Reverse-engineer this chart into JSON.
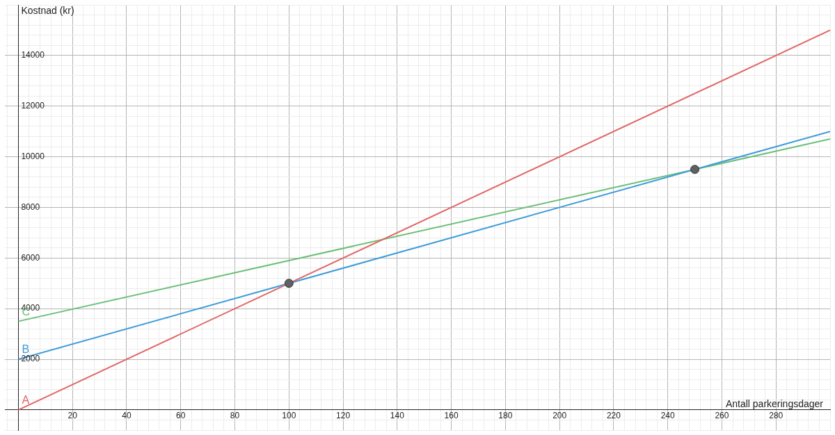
{
  "chart_data": {
    "type": "line",
    "xlabel": "Antall parkeringsdager",
    "ylabel": "Kostnad (kr)",
    "xlim": [
      -5,
      300
    ],
    "ylim": [
      -800,
      16000
    ],
    "xticks": [
      {
        "value": -4,
        "label": null
      },
      {
        "value": 0,
        "label": null
      },
      {
        "value": 4,
        "label": null
      },
      {
        "value": 8,
        "label": null
      },
      {
        "value": 12,
        "label": null
      },
      {
        "value": 16,
        "label": null
      },
      20,
      {
        "value": 24,
        "label": null
      },
      {
        "value": 28,
        "label": null
      },
      {
        "value": 32,
        "label": null
      },
      {
        "value": 36,
        "label": null
      },
      40,
      {
        "value": 44,
        "label": null
      },
      {
        "value": 48,
        "label": null
      },
      {
        "value": 52,
        "label": null
      },
      {
        "value": 56,
        "label": null
      },
      60,
      {
        "value": 64,
        "label": null
      },
      {
        "value": 68,
        "label": null
      },
      {
        "value": 72,
        "label": null
      },
      {
        "value": 76,
        "label": null
      },
      80,
      {
        "value": 84,
        "label": null
      },
      {
        "value": 88,
        "label": null
      },
      {
        "value": 92,
        "label": null
      },
      {
        "value": 96,
        "label": null
      },
      100,
      {
        "value": 104,
        "label": null
      },
      {
        "value": 108,
        "label": null
      },
      {
        "value": 112,
        "label": null
      },
      {
        "value": 116,
        "label": null
      },
      120,
      {
        "value": 124,
        "label": null
      },
      {
        "value": 128,
        "label": null
      },
      {
        "value": 132,
        "label": null
      },
      {
        "value": 136,
        "label": null
      },
      140,
      {
        "value": 144,
        "label": null
      },
      {
        "value": 148,
        "label": null
      },
      {
        "value": 152,
        "label": null
      },
      {
        "value": 156,
        "label": null
      },
      160,
      {
        "value": 164,
        "label": null
      },
      {
        "value": 168,
        "label": null
      },
      {
        "value": 172,
        "label": null
      },
      {
        "value": 176,
        "label": null
      },
      180,
      {
        "value": 184,
        "label": null
      },
      {
        "value": 188,
        "label": null
      },
      {
        "value": 192,
        "label": null
      },
      {
        "value": 196,
        "label": null
      },
      200,
      {
        "value": 204,
        "label": null
      },
      {
        "value": 208,
        "label": null
      },
      {
        "value": 212,
        "label": null
      },
      {
        "value": 216,
        "label": null
      },
      220,
      {
        "value": 224,
        "label": null
      },
      {
        "value": 228,
        "label": null
      },
      {
        "value": 232,
        "label": null
      },
      {
        "value": 236,
        "label": null
      },
      240,
      {
        "value": 244,
        "label": null
      },
      {
        "value": 248,
        "label": null
      },
      {
        "value": 252,
        "label": null
      },
      {
        "value": 256,
        "label": null
      },
      260,
      {
        "value": 264,
        "label": null
      },
      {
        "value": 268,
        "label": null
      },
      {
        "value": 272,
        "label": null
      },
      {
        "value": 276,
        "label": null
      },
      280,
      {
        "value": 284,
        "label": null
      },
      {
        "value": 288,
        "label": null
      },
      {
        "value": 292,
        "label": null
      },
      {
        "value": 296,
        "label": null
      },
      {
        "value": 300,
        "label": null
      }
    ],
    "yticks": [
      {
        "value": -800,
        "label": null
      },
      {
        "value": -400,
        "label": null
      },
      {
        "value": 0,
        "label": null
      },
      {
        "value": 400,
        "label": null
      },
      {
        "value": 800,
        "label": null
      },
      {
        "value": 1200,
        "label": null
      },
      {
        "value": 1600,
        "label": null
      },
      2000,
      {
        "value": 2400,
        "label": null
      },
      {
        "value": 2800,
        "label": null
      },
      {
        "value": 3200,
        "label": null
      },
      {
        "value": 3600,
        "label": null
      },
      4000,
      {
        "value": 4400,
        "label": null
      },
      {
        "value": 4800,
        "label": null
      },
      {
        "value": 5200,
        "label": null
      },
      {
        "value": 5600,
        "label": null
      },
      6000,
      {
        "value": 6400,
        "label": null
      },
      {
        "value": 6800,
        "label": null
      },
      {
        "value": 7200,
        "label": null
      },
      {
        "value": 7600,
        "label": null
      },
      8000,
      {
        "value": 8400,
        "label": null
      },
      {
        "value": 8800,
        "label": null
      },
      {
        "value": 9200,
        "label": null
      },
      {
        "value": 9600,
        "label": null
      },
      10000,
      {
        "value": 10400,
        "label": null
      },
      {
        "value": 10800,
        "label": null
      },
      {
        "value": 11200,
        "label": null
      },
      {
        "value": 11600,
        "label": null
      },
      12000,
      {
        "value": 12400,
        "label": null
      },
      {
        "value": 12800,
        "label": null
      },
      {
        "value": 13200,
        "label": null
      },
      {
        "value": 13600,
        "label": null
      },
      14000,
      {
        "value": 14400,
        "label": null
      },
      {
        "value": 14800,
        "label": null
      },
      {
        "value": 15200,
        "label": null
      },
      {
        "value": 15600,
        "label": null
      },
      {
        "value": 16000,
        "label": null
      }
    ],
    "grid": true,
    "marker": "none",
    "series": [
      {
        "name": "A",
        "color": "#e06666",
        "x": [
          0,
          300
        ],
        "values": [
          0,
          15000
        ]
      },
      {
        "name": "B",
        "color": "#3d9bd9",
        "x": [
          0,
          300
        ],
        "values": [
          2000,
          11000
        ]
      },
      {
        "name": "C",
        "color": "#6abf78",
        "x": [
          0,
          300
        ],
        "values": [
          3500,
          10700
        ]
      },
      {
        "type": "scatter",
        "marker": "circle",
        "color": "#606060",
        "x": [
          100,
          250
        ],
        "values": [
          5000,
          9500
        ]
      }
    ]
  }
}
